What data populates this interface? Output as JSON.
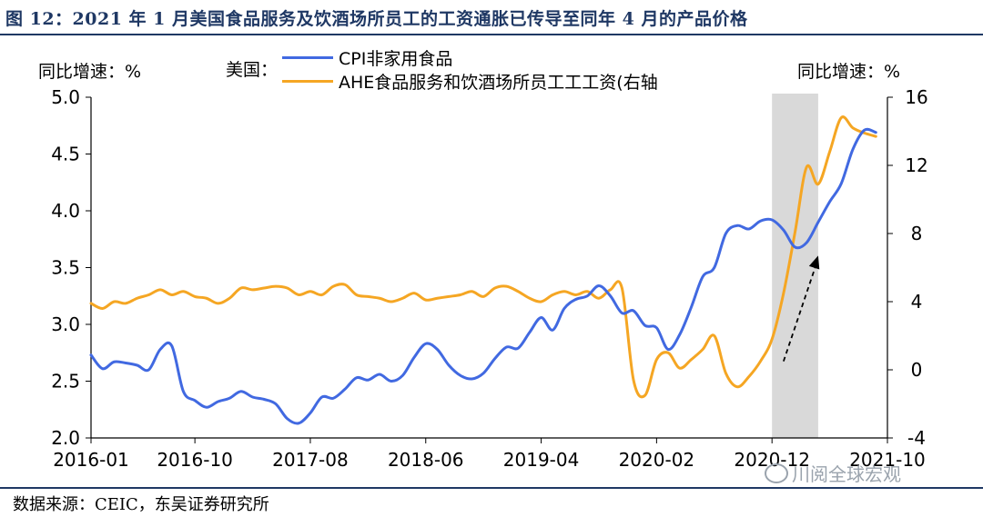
{
  "title": "图 12：2021 年 1 月美国食品服务及饮酒场所员工的工资通胀已传导至同年 4 月的产品价格",
  "source": "数据来源：CEIC，东吴证券研究所",
  "watermark": "川阅全球宏观",
  "legend_country": "美国：",
  "colors": {
    "title": "#1f3864",
    "cpi": "#4169e1",
    "ahe": "#f5a623",
    "shade": "#d9d9d9",
    "arrow": "#000000"
  },
  "chart_data": {
    "type": "line",
    "title": "",
    "left_axis_label": "同比增速：%",
    "right_axis_label": "同比增速：%",
    "ylim_left": [
      2.0,
      5.0
    ],
    "yticks_left": [
      "2.0",
      "2.5",
      "3.0",
      "3.5",
      "4.0",
      "4.5",
      "5.0"
    ],
    "ylim_right": [
      -4,
      16
    ],
    "yticks_right": [
      "-4",
      "0",
      "4",
      "8",
      "12",
      "16"
    ],
    "x_range": [
      "2016-01",
      "2021-10"
    ],
    "xtick_labels": [
      "2016-01",
      "2016-10",
      "2017-08",
      "2018-06",
      "2019-04",
      "2020-02",
      "2020-12",
      "2021-10"
    ],
    "grid": false,
    "legend_position": "top-center",
    "shaded_region": [
      "2020-12",
      "2021-04"
    ],
    "arrow": {
      "from": [
        "2021-01",
        0.5
      ],
      "to": [
        "2021-04",
        6.7
      ],
      "axis": "right",
      "style": "dashed"
    },
    "series": [
      {
        "name": "CPI非家用食品",
        "axis": "left",
        "color": "#4169e1",
        "x": [
          "2016-01",
          "2016-02",
          "2016-03",
          "2016-04",
          "2016-05",
          "2016-06",
          "2016-07",
          "2016-08",
          "2016-09",
          "2016-10",
          "2016-11",
          "2016-12",
          "2017-01",
          "2017-02",
          "2017-03",
          "2017-04",
          "2017-05",
          "2017-06",
          "2017-07",
          "2017-08",
          "2017-09",
          "2017-10",
          "2017-11",
          "2017-12",
          "2018-01",
          "2018-02",
          "2018-03",
          "2018-04",
          "2018-05",
          "2018-06",
          "2018-07",
          "2018-08",
          "2018-09",
          "2018-10",
          "2018-11",
          "2018-12",
          "2019-01",
          "2019-02",
          "2019-03",
          "2019-04",
          "2019-05",
          "2019-06",
          "2019-07",
          "2019-08",
          "2019-09",
          "2019-10",
          "2019-11",
          "2019-12",
          "2020-01",
          "2020-02",
          "2020-03",
          "2020-04",
          "2020-05",
          "2020-06",
          "2020-07",
          "2020-08",
          "2020-09",
          "2020-10",
          "2020-11",
          "2020-12",
          "2021-01",
          "2021-02",
          "2021-03",
          "2021-04",
          "2021-05",
          "2021-06",
          "2021-07",
          "2021-08",
          "2021-09"
        ],
        "values": [
          2.73,
          2.61,
          2.67,
          2.66,
          2.64,
          2.6,
          2.78,
          2.81,
          2.41,
          2.33,
          2.27,
          2.32,
          2.35,
          2.41,
          2.36,
          2.34,
          2.3,
          2.17,
          2.13,
          2.22,
          2.36,
          2.35,
          2.43,
          2.53,
          2.51,
          2.56,
          2.5,
          2.55,
          2.71,
          2.83,
          2.78,
          2.64,
          2.55,
          2.52,
          2.57,
          2.7,
          2.8,
          2.79,
          2.93,
          3.06,
          2.95,
          3.14,
          3.22,
          3.25,
          3.34,
          3.25,
          3.1,
          3.12,
          2.99,
          2.97,
          2.78,
          2.91,
          3.15,
          3.42,
          3.5,
          3.8,
          3.87,
          3.84,
          3.91,
          3.92,
          3.83,
          3.68,
          3.72,
          3.9,
          4.08,
          4.24,
          4.54,
          4.71,
          4.69
        ]
      },
      {
        "name": "AHE食品服务和饮酒场所员工工工资(右轴",
        "axis": "right",
        "color": "#f5a623",
        "x": [
          "2016-01",
          "2016-02",
          "2016-03",
          "2016-04",
          "2016-05",
          "2016-06",
          "2016-07",
          "2016-08",
          "2016-09",
          "2016-10",
          "2016-11",
          "2016-12",
          "2017-01",
          "2017-02",
          "2017-03",
          "2017-04",
          "2017-05",
          "2017-06",
          "2017-07",
          "2017-08",
          "2017-09",
          "2017-10",
          "2017-11",
          "2017-12",
          "2018-01",
          "2018-02",
          "2018-03",
          "2018-04",
          "2018-05",
          "2018-06",
          "2018-07",
          "2018-08",
          "2018-09",
          "2018-10",
          "2018-11",
          "2018-12",
          "2019-01",
          "2019-02",
          "2019-03",
          "2019-04",
          "2019-05",
          "2019-06",
          "2019-07",
          "2019-08",
          "2019-09",
          "2019-10",
          "2019-11",
          "2019-12",
          "2020-01",
          "2020-02",
          "2020-03",
          "2020-04",
          "2020-05",
          "2020-06",
          "2020-07",
          "2020-08",
          "2020-09",
          "2020-10",
          "2020-11",
          "2020-12",
          "2021-01",
          "2021-02",
          "2021-03",
          "2021-04",
          "2021-05",
          "2021-06",
          "2021-07",
          "2021-08",
          "2021-09"
        ],
        "values": [
          3.9,
          3.6,
          4.0,
          3.9,
          4.2,
          4.4,
          4.7,
          4.4,
          4.6,
          4.3,
          4.2,
          3.9,
          4.2,
          4.8,
          4.7,
          4.8,
          4.9,
          4.8,
          4.4,
          4.6,
          4.4,
          4.9,
          5.0,
          4.4,
          4.3,
          4.2,
          4.0,
          4.2,
          4.5,
          4.1,
          4.2,
          4.3,
          4.4,
          4.6,
          4.3,
          4.8,
          4.9,
          4.6,
          4.2,
          4.0,
          4.4,
          4.6,
          4.4,
          4.6,
          4.2,
          4.7,
          4.8,
          -0.6,
          -1.5,
          0.6,
          1.0,
          0.1,
          0.6,
          1.2,
          2.0,
          -0.2,
          -1.0,
          -0.4,
          0.5,
          1.8,
          4.5,
          8.1,
          11.9,
          10.9,
          12.8,
          14.8,
          14.2,
          13.9,
          13.7
        ]
      }
    ]
  }
}
